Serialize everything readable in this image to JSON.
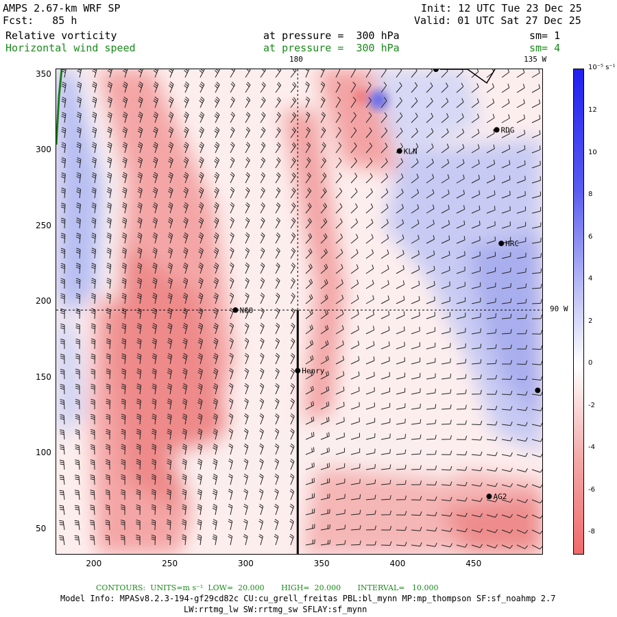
{
  "header": {
    "model": "AMPS 2.67-km WRF SP",
    "forecast": "Fcst:   85 h",
    "init": "Init: 12 UTC Tue 23 Dec 25",
    "valid": "Valid: 01 UTC Sat 27 Dec 25",
    "field1": "Relative vorticity",
    "field2": "Horizontal wind speed",
    "pressure1": "at pressure =  300 hPa",
    "pressure2": "at pressure =  300 hPa",
    "sm1": "sm= 1",
    "sm2": "sm= 4"
  },
  "map": {
    "lon_180": "180",
    "lon_135w": "135 W",
    "lon_90w": "90 W",
    "x_ticks": [
      "200",
      "250",
      "300",
      "350",
      "400",
      "450"
    ],
    "y_ticks": [
      "350",
      "300",
      "250",
      "200",
      "150",
      "100",
      "50"
    ],
    "stations": [
      {
        "label": "RDG",
        "x": 465,
        "y": 314
      },
      {
        "label": "KLN",
        "x": 401,
        "y": 300
      },
      {
        "label": "HRC",
        "x": 468,
        "y": 239
      },
      {
        "label": "NCO",
        "x": 293,
        "y": 195
      },
      {
        "label": "Henry",
        "x": 334,
        "y": 155
      },
      {
        "label": "AG2",
        "x": 460,
        "y": 72
      }
    ],
    "unlabeled_stations": [
      {
        "x": 425,
        "y": 354
      },
      {
        "x": 492,
        "y": 142
      }
    ],
    "x_range": [
      175,
      495
    ],
    "y_range": [
      34,
      354
    ],
    "cross_section_x": 334,
    "cross_section_y_top": 195,
    "dashed_meridian_x": 334,
    "dashed_parallel_y": 195
  },
  "colorbar": {
    "unit": "10⁻⁵ s⁻¹",
    "labels": [
      "12",
      "10",
      "8",
      "6",
      "4",
      "2",
      "0",
      "-2",
      "-4",
      "-6",
      "-8"
    ],
    "values": [
      12,
      10,
      8,
      6,
      4,
      2,
      0,
      -2,
      -4,
      -6,
      -8
    ],
    "range": [
      -9,
      14
    ],
    "colors": {
      "negative": "#f06a6a",
      "zero": "#ffffff",
      "positive": "#1f1ff0"
    }
  },
  "footer": {
    "contours": "CONTOURS:  UNITS=m s⁻¹  LOW=  20.000       HIGH=  20.000       INTERVAL=   10.000",
    "model_info": "Model Info: MPASv8.2.3-194-gf29cd82c CU:cu_grell_freitas PBL:bl_mynn MP:mp_thompson SF:sf_noahmp 2.7",
    "phys": "LW:rrtmg_lw SW:rrtmg_sw SFLAY:sf_mynn"
  }
}
